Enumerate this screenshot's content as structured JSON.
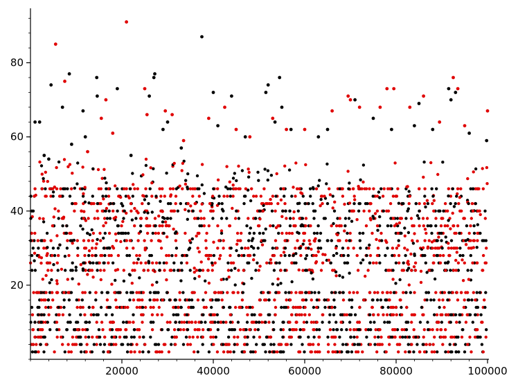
{
  "chart_data": {
    "type": "scatter",
    "title": "",
    "xlabel": "",
    "ylabel": "",
    "xlim": [
      0,
      100000
    ],
    "ylim": [
      0,
      93
    ],
    "x_ticks": [
      20000,
      40000,
      60000,
      80000,
      100000
    ],
    "x_tick_labels": [
      "20000",
      "40000",
      "60000",
      "80000",
      "100000"
    ],
    "y_ticks": [
      20,
      40,
      60,
      80
    ],
    "y_tick_labels": [
      "20",
      "40",
      "60",
      "80"
    ],
    "grid": false,
    "legend": "none",
    "series": [
      {
        "color": "#000000",
        "points": [
          [
            1000,
            64
          ],
          [
            2000,
            64
          ],
          [
            3000,
            55
          ],
          [
            4000,
            54
          ],
          [
            4500,
            74
          ],
          [
            7000,
            68
          ],
          [
            8500,
            77
          ],
          [
            9000,
            58
          ],
          [
            11500,
            67
          ],
          [
            12000,
            60
          ],
          [
            14500,
            76
          ],
          [
            14600,
            71
          ],
          [
            19000,
            73
          ],
          [
            22000,
            55
          ],
          [
            26000,
            71
          ],
          [
            27000,
            76
          ],
          [
            27200,
            77
          ],
          [
            29000,
            62
          ],
          [
            30000,
            64
          ],
          [
            33000,
            57
          ],
          [
            37500,
            87
          ],
          [
            40000,
            72
          ],
          [
            41000,
            63
          ],
          [
            44000,
            71
          ],
          [
            47000,
            60
          ],
          [
            51500,
            72
          ],
          [
            52000,
            74
          ],
          [
            53500,
            64
          ],
          [
            54500,
            76
          ],
          [
            55000,
            68
          ],
          [
            57000,
            62
          ],
          [
            63000,
            60
          ],
          [
            65000,
            62
          ],
          [
            71000,
            70
          ],
          [
            75000,
            65
          ],
          [
            79000,
            62
          ],
          [
            84000,
            63
          ],
          [
            85000,
            69
          ],
          [
            88000,
            62
          ],
          [
            91500,
            73
          ],
          [
            92000,
            70
          ],
          [
            93000,
            72
          ],
          [
            96000,
            61
          ],
          [
            99800,
            59
          ]
        ]
      },
      {
        "color": "#e00000",
        "points": [
          [
            5500,
            85
          ],
          [
            7500,
            75
          ],
          [
            12500,
            56
          ],
          [
            15500,
            65
          ],
          [
            16500,
            70
          ],
          [
            18000,
            61
          ],
          [
            21000,
            91
          ],
          [
            25000,
            73
          ],
          [
            25500,
            66
          ],
          [
            29500,
            67
          ],
          [
            31000,
            66
          ],
          [
            33500,
            59
          ],
          [
            39000,
            65
          ],
          [
            42500,
            68
          ],
          [
            45000,
            62
          ],
          [
            48000,
            60
          ],
          [
            53000,
            65
          ],
          [
            56000,
            62
          ],
          [
            60000,
            62
          ],
          [
            66000,
            67
          ],
          [
            69500,
            71
          ],
          [
            70000,
            70
          ],
          [
            72000,
            68
          ],
          [
            76500,
            68
          ],
          [
            78000,
            73
          ],
          [
            79500,
            73
          ],
          [
            83000,
            68
          ],
          [
            86000,
            71
          ],
          [
            89500,
            64
          ],
          [
            92500,
            76
          ],
          [
            93500,
            73
          ],
          [
            95000,
            63
          ],
          [
            100000,
            67
          ]
        ]
      }
    ]
  }
}
